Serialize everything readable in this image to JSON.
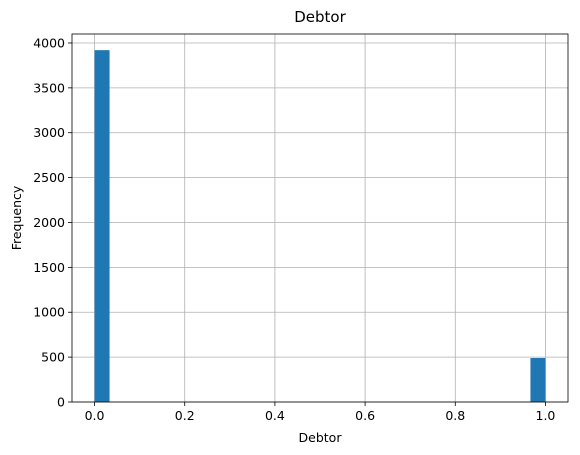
{
  "chart_data": {
    "type": "bar",
    "title": "Debtor",
    "xlabel": "Debtor",
    "ylabel": "Frequency",
    "xlim": [
      -0.05,
      1.05
    ],
    "ylim": [
      0,
      4100
    ],
    "xticks": [
      0.0,
      0.2,
      0.4,
      0.6,
      0.8,
      1.0
    ],
    "xtick_labels": [
      "0.0",
      "0.2",
      "0.4",
      "0.6",
      "0.8",
      "1.0"
    ],
    "yticks": [
      0,
      500,
      1000,
      1500,
      2000,
      2500,
      3000,
      3500,
      4000
    ],
    "ytick_labels": [
      "0",
      "500",
      "1000",
      "1500",
      "2000",
      "2500",
      "3000",
      "3500",
      "4000"
    ],
    "grid": true,
    "bar_color": "#1f77b4",
    "bins": [
      {
        "start": 0.0,
        "end": 0.0333,
        "value": 3920
      },
      {
        "start": 0.9667,
        "end": 1.0,
        "value": 490
      }
    ]
  }
}
